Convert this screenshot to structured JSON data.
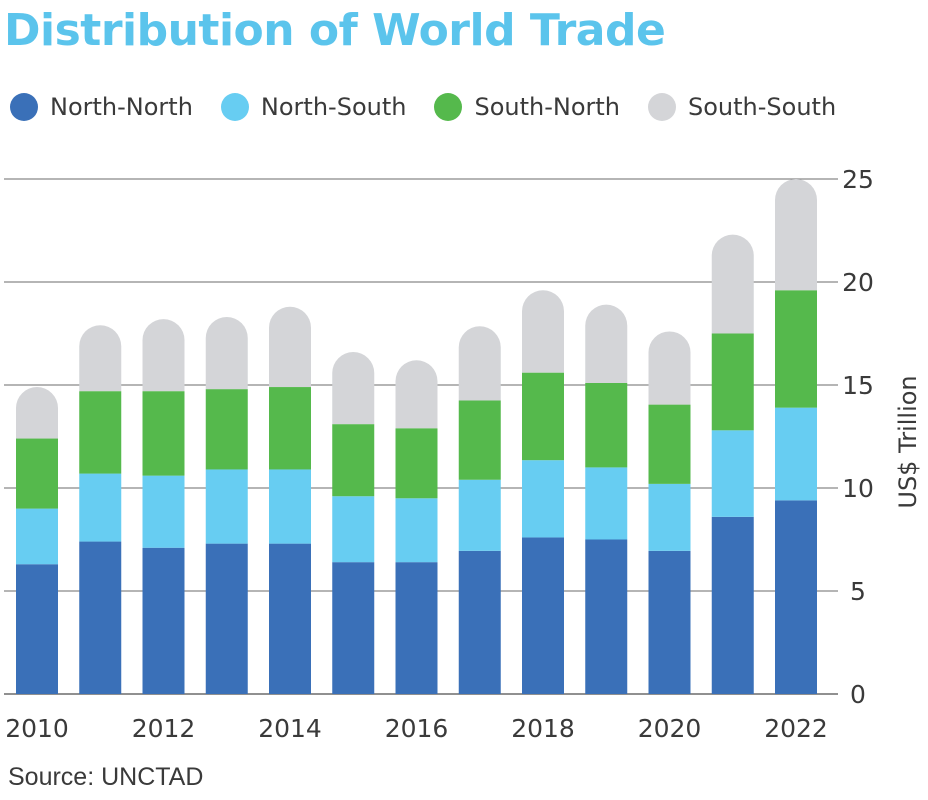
{
  "title": "Distribution of World Trade",
  "source": "Source: UNCTAD",
  "colors": {
    "title": "#5bc4ec",
    "North-North": "#3a70b8",
    "North-South": "#67cdf2",
    "South-North": "#55b94c",
    "South-South": "#d4d5d8",
    "grid": "#6b6b6b",
    "text": "#3a3a3a"
  },
  "legend": [
    {
      "label": "North-North",
      "color_key": "North-North"
    },
    {
      "label": "North-South",
      "color_key": "North-South"
    },
    {
      "label": "South-North",
      "color_key": "South-North"
    },
    {
      "label": "South-South",
      "color_key": "South-South"
    }
  ],
  "chart_data": {
    "type": "bar",
    "stacked": true,
    "title": "Distribution of World Trade",
    "ylabel": "US$ Trillion",
    "xlabel": "",
    "ylim": [
      0,
      25
    ],
    "yticks": [
      0,
      5,
      10,
      15,
      20,
      25
    ],
    "y_axis_position": "right",
    "grid": true,
    "legend_position": "top-left",
    "categories": [
      "2010",
      "2011",
      "2012",
      "2013",
      "2014",
      "2015",
      "2016",
      "2017",
      "2018",
      "2019",
      "2020",
      "2021",
      "2022"
    ],
    "x_tick_labels": [
      "2010",
      "",
      "2012",
      "",
      "2014",
      "",
      "2016",
      "",
      "2018",
      "",
      "2020",
      "",
      "2022"
    ],
    "series": [
      {
        "name": "North-North",
        "values": [
          6.3,
          7.4,
          7.1,
          7.3,
          7.3,
          6.4,
          6.4,
          6.95,
          7.6,
          7.5,
          6.95,
          8.6,
          9.4
        ]
      },
      {
        "name": "North-South",
        "values": [
          2.7,
          3.3,
          3.5,
          3.6,
          3.6,
          3.2,
          3.1,
          3.45,
          3.75,
          3.5,
          3.25,
          4.2,
          4.5
        ]
      },
      {
        "name": "South-North",
        "values": [
          3.4,
          4.0,
          4.1,
          3.9,
          4.0,
          3.5,
          3.4,
          3.85,
          4.25,
          4.1,
          3.85,
          4.7,
          5.7
        ]
      },
      {
        "name": "South-South",
        "values": [
          2.5,
          3.2,
          3.5,
          3.5,
          3.9,
          3.5,
          3.3,
          3.6,
          4.0,
          3.8,
          3.55,
          4.8,
          5.4
        ]
      }
    ]
  }
}
